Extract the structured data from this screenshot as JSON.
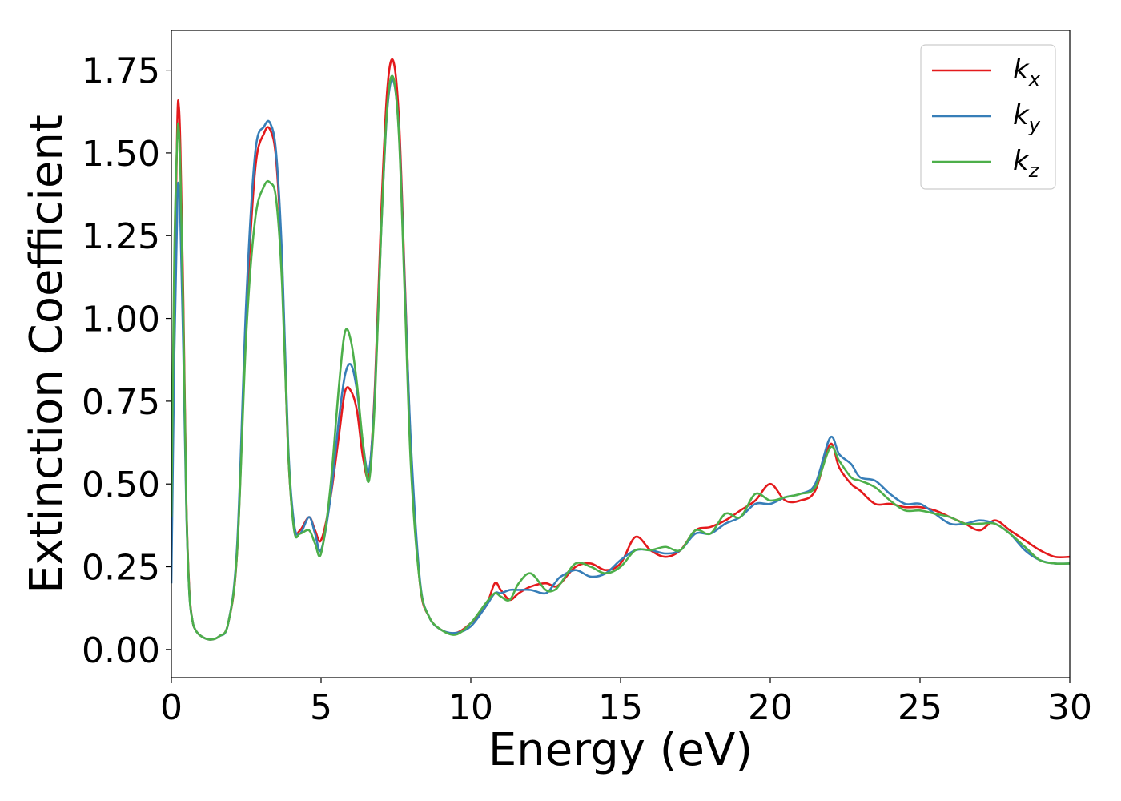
{
  "chart_data": {
    "type": "line",
    "title": "",
    "xlabel": "Energy (eV)",
    "ylabel": "Extinction Coefficient",
    "xlim": [
      0,
      30
    ],
    "ylim": [
      -0.085,
      1.87
    ],
    "xticks": [
      0,
      5,
      10,
      15,
      20,
      25,
      30
    ],
    "yticks": [
      0.0,
      0.25,
      0.5,
      0.75,
      1.0,
      1.25,
      1.5,
      1.75
    ],
    "xtick_labels": [
      "0",
      "5",
      "10",
      "15",
      "20",
      "25",
      "30"
    ],
    "ytick_labels": [
      "0.00",
      "0.25",
      "0.50",
      "0.75",
      "1.00",
      "1.25",
      "1.50",
      "1.75"
    ],
    "grid": false,
    "legend": "top-right",
    "series": [
      {
        "name": "kx",
        "label_base": "k",
        "label_sub": "x",
        "color": "#e41a1c",
        "x": [
          0,
          0.1,
          0.2,
          0.25,
          0.3,
          0.4,
          0.5,
          0.6,
          0.7,
          0.8,
          1.0,
          1.3,
          1.6,
          1.9,
          2.2,
          2.5,
          2.8,
          3.1,
          3.3,
          3.5,
          3.7,
          3.9,
          4.1,
          4.3,
          4.6,
          4.8,
          5.0,
          5.3,
          5.6,
          5.8,
          6.0,
          6.2,
          6.4,
          6.6,
          6.8,
          7.0,
          7.2,
          7.4,
          7.6,
          7.8,
          8.0,
          8.3,
          8.6,
          9.0,
          9.5,
          10.0,
          10.5,
          10.8,
          11.0,
          11.3,
          11.6,
          12.0,
          12.5,
          12.8,
          13.0,
          13.5,
          14.0,
          14.5,
          15.0,
          15.5,
          16.0,
          16.5,
          17.0,
          17.5,
          18.0,
          18.5,
          19.0,
          19.5,
          20.0,
          20.5,
          21.0,
          21.5,
          22.0,
          22.3,
          22.7,
          23.0,
          23.5,
          24.0,
          24.5,
          25.0,
          25.5,
          26.0,
          26.5,
          27.0,
          27.5,
          28.0,
          28.5,
          29.0,
          29.5,
          30.0
        ],
        "y": [
          0.25,
          1.1,
          1.6,
          1.64,
          1.52,
          1.05,
          0.45,
          0.18,
          0.09,
          0.06,
          0.04,
          0.03,
          0.04,
          0.08,
          0.3,
          1.0,
          1.45,
          1.56,
          1.57,
          1.48,
          1.15,
          0.6,
          0.37,
          0.36,
          0.4,
          0.36,
          0.33,
          0.45,
          0.65,
          0.78,
          0.78,
          0.72,
          0.58,
          0.53,
          0.8,
          1.3,
          1.68,
          1.78,
          1.6,
          1.1,
          0.6,
          0.2,
          0.1,
          0.06,
          0.05,
          0.08,
          0.13,
          0.2,
          0.18,
          0.15,
          0.17,
          0.19,
          0.2,
          0.19,
          0.2,
          0.25,
          0.26,
          0.24,
          0.26,
          0.34,
          0.3,
          0.28,
          0.3,
          0.36,
          0.37,
          0.39,
          0.42,
          0.45,
          0.5,
          0.45,
          0.45,
          0.48,
          0.62,
          0.55,
          0.5,
          0.48,
          0.44,
          0.44,
          0.43,
          0.43,
          0.42,
          0.4,
          0.38,
          0.36,
          0.39,
          0.36,
          0.33,
          0.3,
          0.28,
          0.28
        ]
      },
      {
        "name": "ky",
        "label_base": "k",
        "label_sub": "y",
        "color": "#377eb8",
        "x": [
          0,
          0.1,
          0.2,
          0.25,
          0.3,
          0.4,
          0.5,
          0.6,
          0.7,
          0.8,
          1.0,
          1.3,
          1.6,
          1.9,
          2.2,
          2.5,
          2.8,
          3.1,
          3.3,
          3.5,
          3.7,
          3.9,
          4.1,
          4.3,
          4.6,
          4.8,
          5.0,
          5.3,
          5.6,
          5.8,
          6.0,
          6.2,
          6.4,
          6.6,
          6.8,
          7.0,
          7.2,
          7.4,
          7.6,
          7.8,
          8.0,
          8.3,
          8.6,
          9.0,
          9.5,
          10.0,
          10.5,
          10.8,
          11.0,
          11.3,
          11.6,
          12.0,
          12.5,
          12.8,
          13.0,
          13.5,
          14.0,
          14.5,
          15.0,
          15.5,
          16.0,
          16.5,
          17.0,
          17.5,
          18.0,
          18.5,
          19.0,
          19.5,
          20.0,
          20.5,
          21.0,
          21.5,
          22.0,
          22.3,
          22.7,
          23.0,
          23.5,
          24.0,
          24.5,
          25.0,
          25.5,
          26.0,
          26.5,
          27.0,
          27.5,
          28.0,
          28.5,
          29.0,
          29.5,
          30.0
        ],
        "y": [
          0.2,
          0.9,
          1.35,
          1.4,
          1.3,
          0.9,
          0.42,
          0.17,
          0.09,
          0.06,
          0.04,
          0.03,
          0.04,
          0.08,
          0.32,
          1.05,
          1.5,
          1.58,
          1.59,
          1.5,
          1.18,
          0.62,
          0.38,
          0.35,
          0.4,
          0.35,
          0.3,
          0.45,
          0.7,
          0.83,
          0.86,
          0.78,
          0.62,
          0.54,
          0.78,
          1.25,
          1.62,
          1.72,
          1.56,
          1.08,
          0.62,
          0.21,
          0.1,
          0.06,
          0.05,
          0.07,
          0.13,
          0.17,
          0.17,
          0.18,
          0.18,
          0.18,
          0.17,
          0.2,
          0.22,
          0.24,
          0.22,
          0.23,
          0.27,
          0.3,
          0.3,
          0.29,
          0.3,
          0.35,
          0.35,
          0.38,
          0.4,
          0.44,
          0.44,
          0.46,
          0.47,
          0.5,
          0.64,
          0.59,
          0.56,
          0.52,
          0.51,
          0.47,
          0.44,
          0.44,
          0.41,
          0.38,
          0.38,
          0.39,
          0.38,
          0.35,
          0.3,
          0.27,
          0.26,
          0.26
        ]
      },
      {
        "name": "kz",
        "label_base": "k",
        "label_sub": "z",
        "color": "#4daf4a",
        "x": [
          0,
          0.1,
          0.2,
          0.25,
          0.3,
          0.4,
          0.5,
          0.6,
          0.7,
          0.8,
          1.0,
          1.3,
          1.6,
          1.9,
          2.2,
          2.5,
          2.8,
          3.1,
          3.3,
          3.5,
          3.7,
          3.9,
          4.1,
          4.3,
          4.6,
          4.8,
          5.0,
          5.3,
          5.6,
          5.8,
          6.0,
          6.2,
          6.4,
          6.6,
          6.8,
          7.0,
          7.2,
          7.4,
          7.6,
          7.8,
          8.0,
          8.3,
          8.6,
          9.0,
          9.5,
          10.0,
          10.5,
          10.8,
          11.0,
          11.3,
          11.6,
          12.0,
          12.5,
          12.8,
          13.0,
          13.5,
          14.0,
          14.5,
          15.0,
          15.5,
          16.0,
          16.5,
          17.0,
          17.5,
          18.0,
          18.5,
          19.0,
          19.5,
          20.0,
          20.5,
          21.0,
          21.5,
          22.0,
          22.3,
          22.7,
          23.0,
          23.5,
          24.0,
          24.5,
          25.0,
          25.5,
          26.0,
          26.5,
          27.0,
          27.5,
          28.0,
          28.5,
          29.0,
          29.5,
          30.0
        ],
        "y": [
          0.4,
          1.2,
          1.55,
          1.57,
          1.45,
          1.0,
          0.44,
          0.17,
          0.09,
          0.06,
          0.04,
          0.03,
          0.04,
          0.08,
          0.3,
          0.95,
          1.3,
          1.4,
          1.41,
          1.36,
          1.1,
          0.6,
          0.36,
          0.35,
          0.36,
          0.32,
          0.29,
          0.48,
          0.8,
          0.96,
          0.93,
          0.8,
          0.62,
          0.51,
          0.76,
          1.25,
          1.63,
          1.73,
          1.55,
          1.05,
          0.55,
          0.2,
          0.1,
          0.06,
          0.045,
          0.08,
          0.14,
          0.17,
          0.16,
          0.15,
          0.2,
          0.23,
          0.18,
          0.18,
          0.2,
          0.26,
          0.25,
          0.23,
          0.25,
          0.3,
          0.3,
          0.31,
          0.3,
          0.36,
          0.35,
          0.41,
          0.4,
          0.47,
          0.45,
          0.46,
          0.47,
          0.49,
          0.61,
          0.57,
          0.52,
          0.51,
          0.49,
          0.45,
          0.42,
          0.42,
          0.41,
          0.4,
          0.38,
          0.38,
          0.38,
          0.35,
          0.31,
          0.27,
          0.26,
          0.26
        ]
      }
    ]
  }
}
